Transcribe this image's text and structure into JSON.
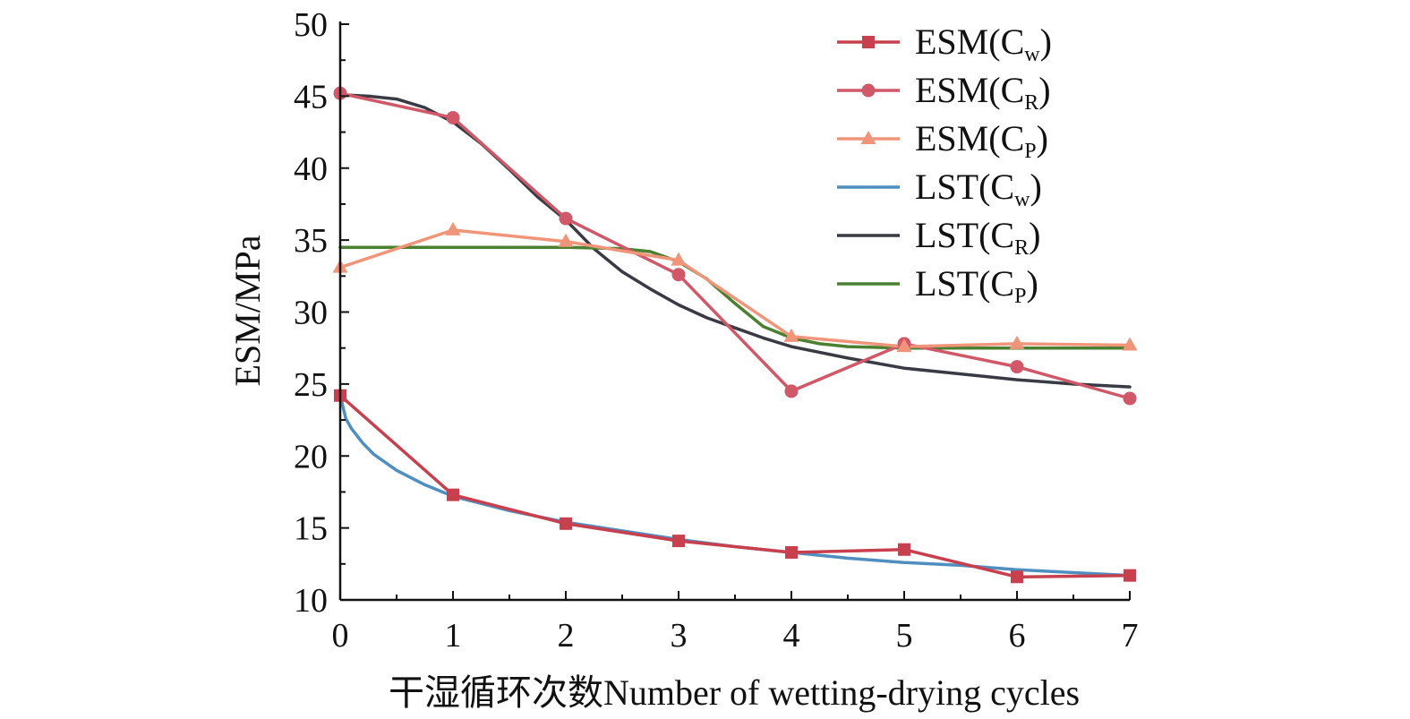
{
  "chart_data": {
    "type": "line",
    "xlabel": "干湿循环次数Number of wetting-drying cycles",
    "ylabel": "ESM/MPa",
    "xlim": [
      0,
      7
    ],
    "ylim": [
      10,
      50
    ],
    "x_ticks": [
      "0",
      "1",
      "2",
      "3",
      "4",
      "5",
      "6",
      "7"
    ],
    "y_ticks": [
      "10",
      "15",
      "20",
      "25",
      "30",
      "35",
      "40",
      "45",
      "50"
    ],
    "grid": false,
    "legend_position": "top-right",
    "x": [
      0,
      1,
      2,
      3,
      4,
      5,
      6,
      7
    ],
    "series": [
      {
        "name": "ESM(Cw)",
        "label_main": "ESM(C",
        "label_sub": "w",
        "label_end": ")",
        "kind": "markers-line",
        "marker": "square",
        "color": "#c8404e",
        "values": [
          24.2,
          17.3,
          15.3,
          14.1,
          13.3,
          13.5,
          11.6,
          11.7
        ]
      },
      {
        "name": "ESM(CR)",
        "label_main": "ESM(C",
        "label_sub": "R",
        "label_end": ")",
        "kind": "markers-line",
        "marker": "circle",
        "color": "#d05868",
        "values": [
          45.2,
          43.5,
          36.5,
          32.6,
          24.5,
          27.8,
          26.2,
          24.0
        ]
      },
      {
        "name": "ESM(CP)",
        "label_main": "ESM(C",
        "label_sub": "P",
        "label_end": ")",
        "kind": "markers-line",
        "marker": "triangle",
        "color": "#f0957a",
        "values": [
          33.1,
          35.7,
          34.9,
          33.6,
          28.3,
          27.6,
          27.8,
          27.7
        ]
      },
      {
        "name": "LST(Cw)",
        "label_main": "LST(C",
        "label_sub": "w",
        "label_end": ")",
        "kind": "fit",
        "color": "#4f8fc0",
        "fit": {
          "x": [
            0,
            0.05,
            0.1,
            0.2,
            0.3,
            0.5,
            0.75,
            1,
            1.5,
            2,
            2.5,
            3,
            3.5,
            4,
            4.5,
            5,
            5.5,
            6,
            6.5,
            7
          ],
          "y": [
            24.2,
            22.6,
            21.9,
            20.9,
            20.1,
            19.0,
            18.0,
            17.2,
            16.2,
            15.4,
            14.8,
            14.2,
            13.7,
            13.3,
            12.9,
            12.6,
            12.4,
            12.1,
            11.9,
            11.7
          ]
        }
      },
      {
        "name": "LST(CR)",
        "label_main": "LST(C",
        "label_sub": "R",
        "label_end": ")",
        "kind": "fit",
        "color": "#3a3a44",
        "fit": {
          "x": [
            0,
            0.25,
            0.5,
            0.75,
            1,
            1.25,
            1.5,
            1.75,
            2,
            2.25,
            2.5,
            2.75,
            3,
            3.25,
            3.5,
            3.75,
            4,
            4.5,
            5,
            5.5,
            6,
            6.5,
            7
          ],
          "y": [
            45.1,
            45.0,
            44.8,
            44.2,
            43.2,
            41.7,
            39.9,
            38.0,
            36.4,
            34.4,
            32.8,
            31.6,
            30.5,
            29.6,
            28.9,
            28.2,
            27.6,
            26.8,
            26.1,
            25.7,
            25.3,
            25.0,
            24.8
          ]
        }
      },
      {
        "name": "LST(CP)",
        "label_main": "LST(C",
        "label_sub": "P",
        "label_end": ")",
        "kind": "fit",
        "color": "#4a8030",
        "fit": {
          "x": [
            0,
            1,
            2,
            2.5,
            2.75,
            3,
            3.25,
            3.5,
            3.75,
            4,
            4.25,
            4.5,
            5,
            6,
            7
          ],
          "y": [
            34.5,
            34.5,
            34.5,
            34.4,
            34.2,
            33.5,
            32.3,
            30.6,
            29.0,
            28.2,
            27.8,
            27.6,
            27.5,
            27.5,
            27.5
          ]
        }
      }
    ]
  }
}
